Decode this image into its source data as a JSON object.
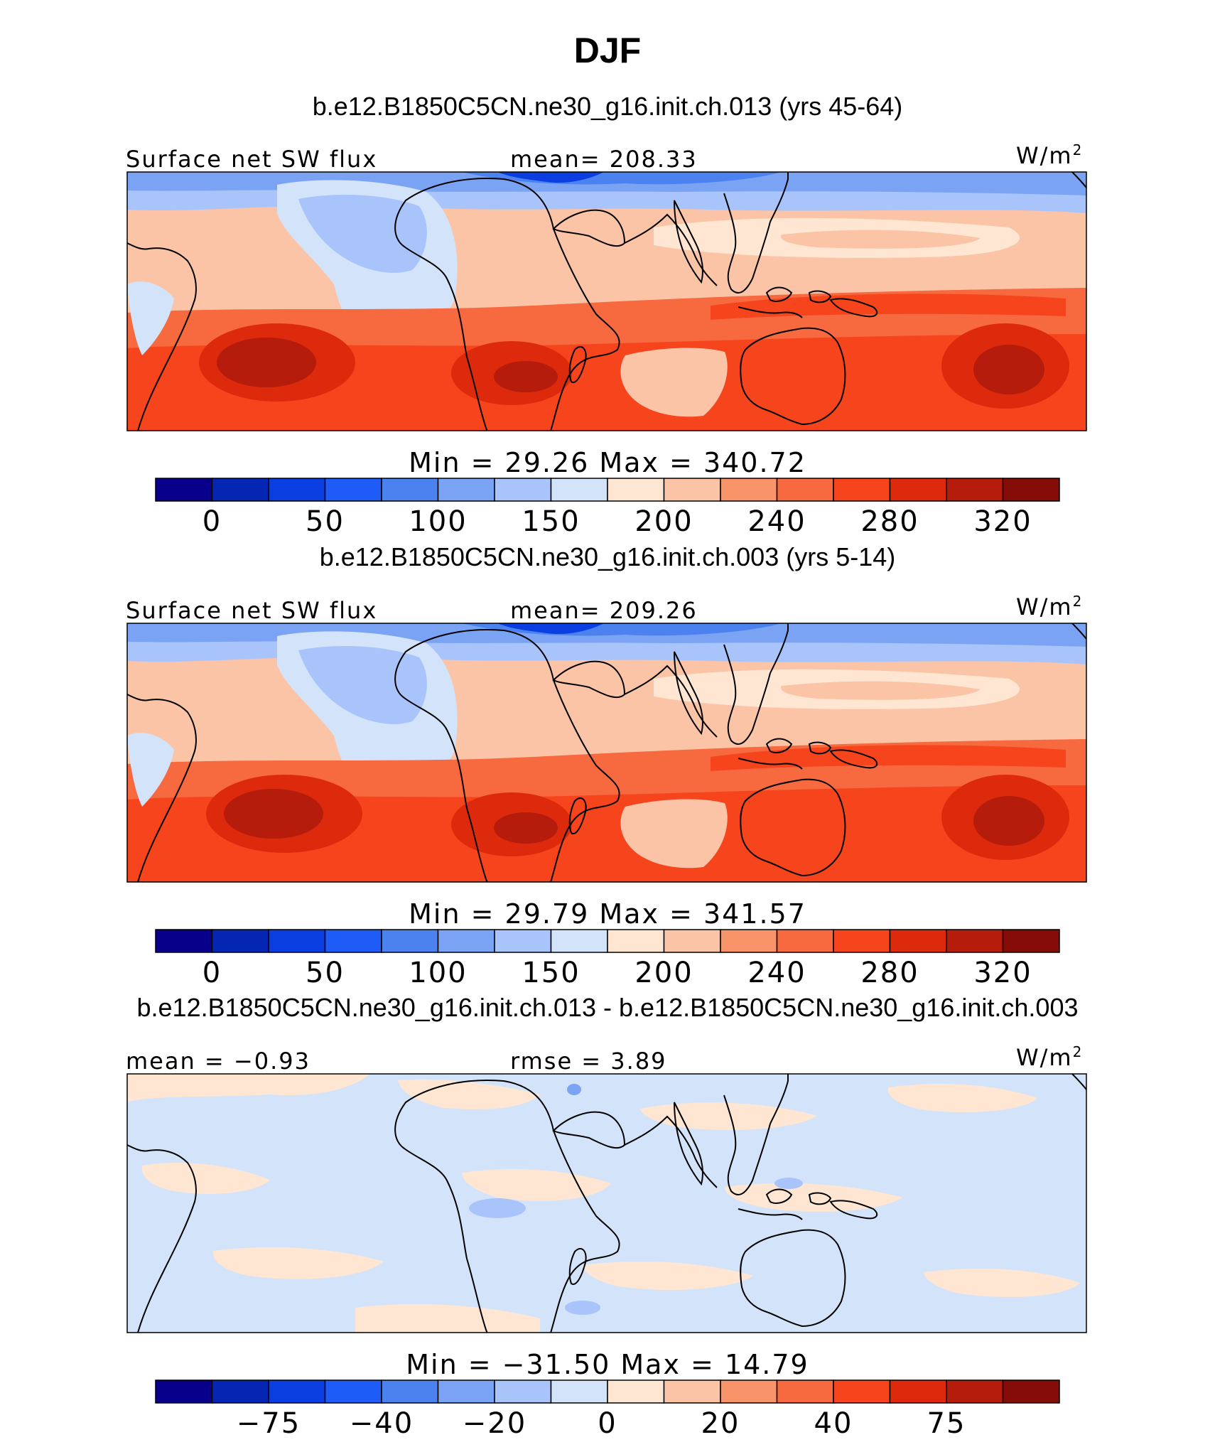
{
  "figure": {
    "title": "DJF"
  },
  "palette": [
    "#08008a",
    "#0525b3",
    "#0a3ee0",
    "#1f5cf7",
    "#4c82f0",
    "#7ba3f4",
    "#a8c4fa",
    "#d3e4fa",
    "#ffe6d2",
    "#fcc4a6",
    "#f9946a",
    "#f7693f",
    "#f6441d",
    "#dd2a0c",
    "#b51c0c",
    "#860c08"
  ],
  "coastline_color": "#000000",
  "panels": [
    {
      "subtitle": "b.e12.B1850C5CN.ne30_g16.init.ch.013 (yrs 45-64)",
      "left_label": "Surface net SW flux",
      "center_label": "mean= 208.33",
      "units": "W/m",
      "units_sup": "2",
      "minmax": "Min =  29.26 Max = 340.72",
      "colorbar_ticks": [
        "0",
        "50",
        "100",
        "150",
        "200",
        "240",
        "280",
        "320"
      ],
      "bg": "#fcc4a6"
    },
    {
      "subtitle": "b.e12.B1850C5CN.ne30_g16.init.ch.003 (yrs 5-14)",
      "left_label": "Surface net SW flux",
      "center_label": "mean= 209.26",
      "units": "W/m",
      "units_sup": "2",
      "minmax": "Min =  29.79 Max = 341.57",
      "colorbar_ticks": [
        "0",
        "50",
        "100",
        "150",
        "200",
        "240",
        "280",
        "320"
      ],
      "bg": "#fcc4a6"
    },
    {
      "subtitle": "b.e12.B1850C5CN.ne30_g16.init.ch.013 - b.e12.B1850C5CN.ne30_g16.init.ch.003",
      "left_label": "mean =  −0.93",
      "center_label": "rmse =   3.89",
      "units": "W/m",
      "units_sup": "2",
      "minmax": "Min = −31.50 Max =  14.79",
      "colorbar_ticks": [
        "−75",
        "−40",
        "−20",
        "0",
        "20",
        "40",
        "75"
      ],
      "bg": "#d3e4fa"
    }
  ]
}
